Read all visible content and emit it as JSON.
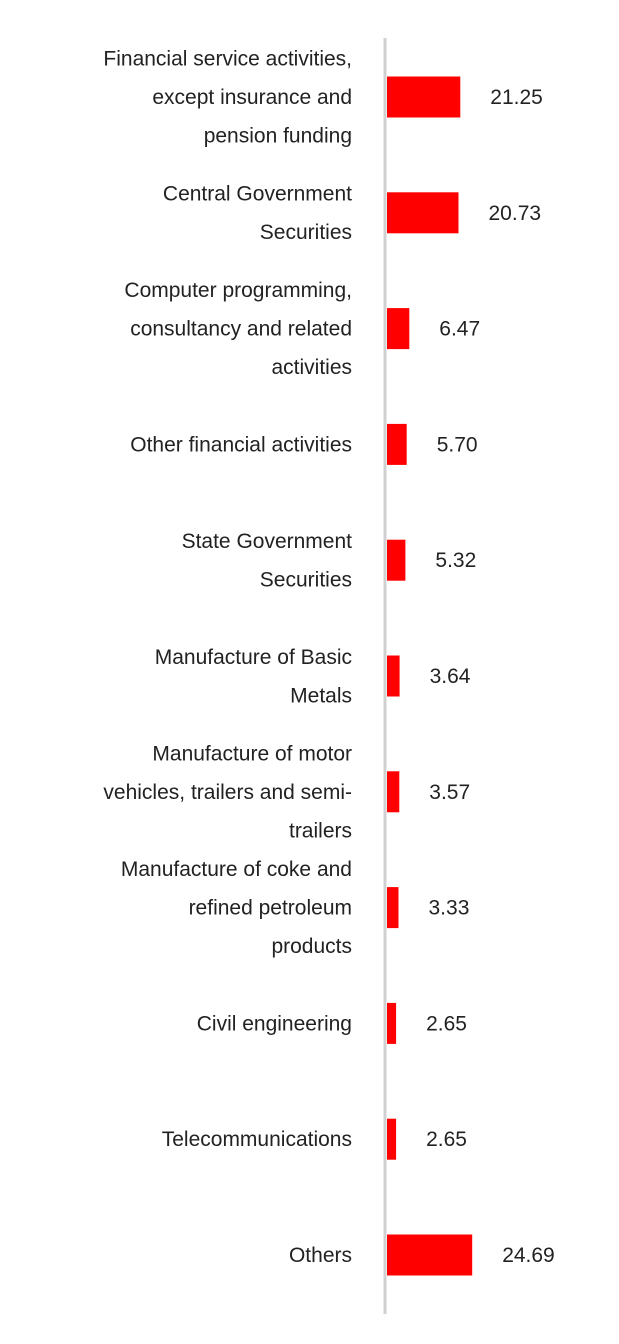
{
  "chart_data": {
    "type": "bar",
    "orientation": "horizontal",
    "categories": [
      [
        "Financial service activities,",
        "except insurance and",
        "pension funding"
      ],
      [
        "Central Government",
        "Securities"
      ],
      [
        "Computer programming,",
        "consultancy and related",
        "activities"
      ],
      [
        "Other financial activities"
      ],
      [
        "State Government",
        "Securities"
      ],
      [
        "Manufacture of Basic",
        "Metals"
      ],
      [
        "Manufacture of motor",
        "vehicles, trailers and semi-",
        "trailers"
      ],
      [
        "Manufacture of coke and",
        "refined petroleum",
        "products"
      ],
      [
        "Civil engineering"
      ],
      [
        "Telecommunications"
      ],
      [
        "Others"
      ]
    ],
    "values": [
      21.25,
      20.73,
      6.47,
      5.7,
      5.32,
      3.64,
      3.57,
      3.33,
      2.65,
      2.65,
      24.69
    ],
    "value_labels": [
      "21.25",
      "20.73",
      "6.47",
      "5.70",
      "5.32",
      "3.64",
      "3.57",
      "3.33",
      "2.65",
      "2.65",
      "24.69"
    ],
    "bar_color": "#ff0000",
    "axis_color": "#d0d0d0",
    "xlim": [
      0,
      35
    ],
    "grid": false,
    "legend": "none"
  }
}
